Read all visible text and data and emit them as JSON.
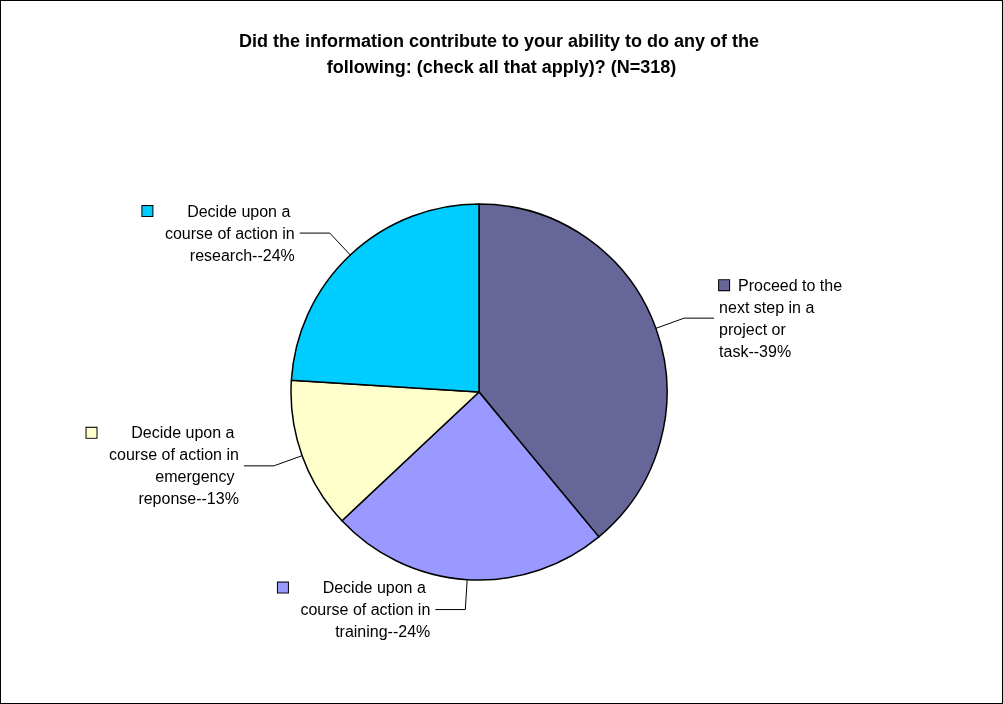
{
  "chart_data": {
    "type": "pie",
    "title": "Did the information contribute to your ability to do any of the following: (check all that apply)? (N=318)",
    "categories": [
      "Proceed to the next step in a project or task--",
      "Decide upon a course of action in training--",
      "Decide upon a course of action in emergency reponse--",
      "Decide upon a course of action in research--"
    ],
    "legend": true,
    "values": [
      39,
      24,
      13,
      24
    ],
    "value_labels": [
      "39%",
      "24%",
      "13%",
      "24%"
    ],
    "colors": [
      "#666699",
      "#9999ff",
      "#ffffcc",
      "#00ccff"
    ]
  }
}
